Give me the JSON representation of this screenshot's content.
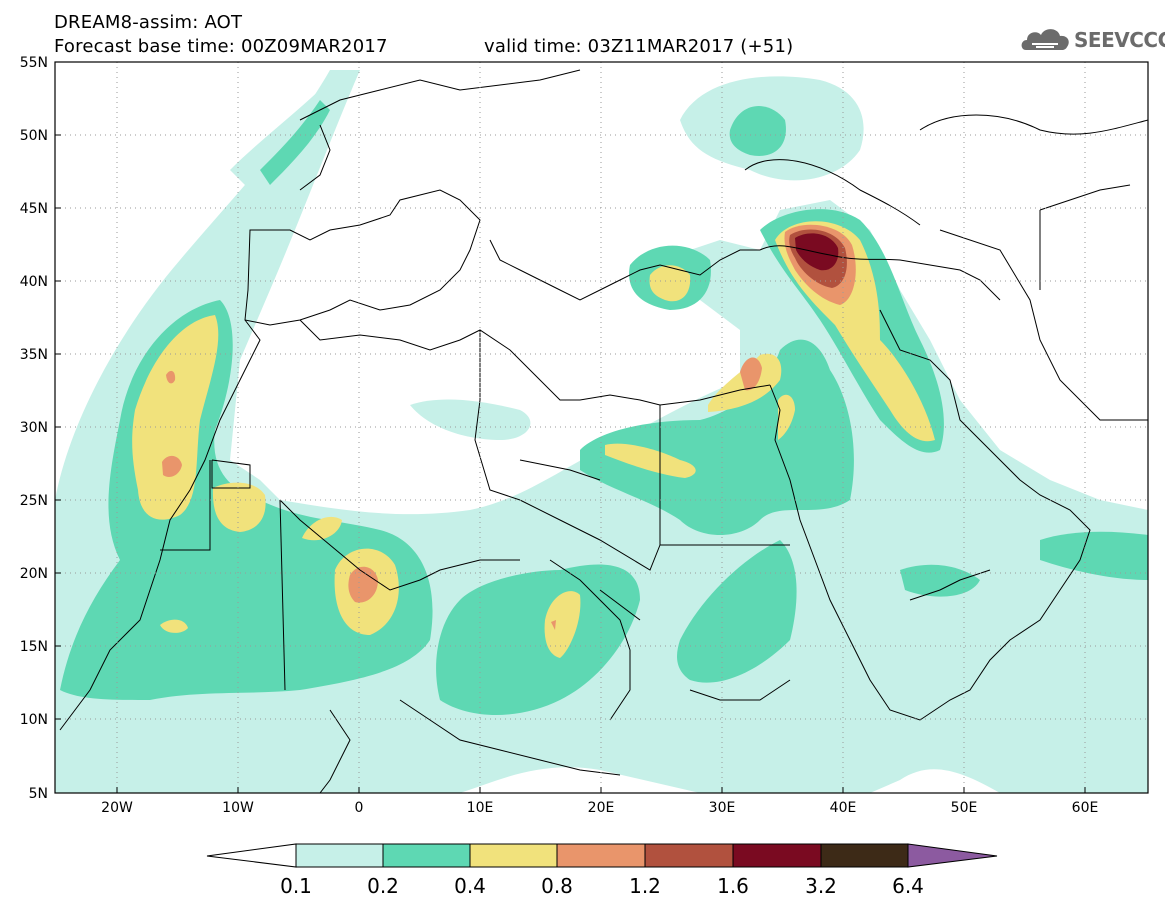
{
  "header": {
    "line1": "DREAM8-assim: AOT",
    "line2_left": "Forecast base time: 00Z09MAR2017",
    "line2_right": "valid time: 03Z11MAR2017 (+51)"
  },
  "logo": {
    "text": "SEEVCCC",
    "icon": "cloud-logo-icon"
  },
  "map": {
    "lon_range": [
      -25,
      65
    ],
    "lat_range": [
      5,
      55
    ],
    "lat_ticks": [
      "5N",
      "10N",
      "15N",
      "20N",
      "25N",
      "30N",
      "35N",
      "40N",
      "45N",
      "50N",
      "55N"
    ],
    "lon_ticks": [
      "20W",
      "10W",
      "0",
      "10E",
      "20E",
      "30E",
      "40E",
      "50E",
      "60E"
    ],
    "grid": "dotted"
  },
  "colorbar": {
    "levels": [
      "0.1",
      "0.2",
      "0.4",
      "0.8",
      "1.2",
      "1.6",
      "3.2",
      "6.4"
    ],
    "colors": {
      "under": "#ffffff",
      "b1": "#c6f0e8",
      "b2": "#5ed8b3",
      "b3": "#f1e27c",
      "b4": "#e9956b",
      "b5": "#b1513e",
      "b6": "#7a0a21",
      "b7": "#3d2a17",
      "over": "#8c5aa0"
    }
  }
}
